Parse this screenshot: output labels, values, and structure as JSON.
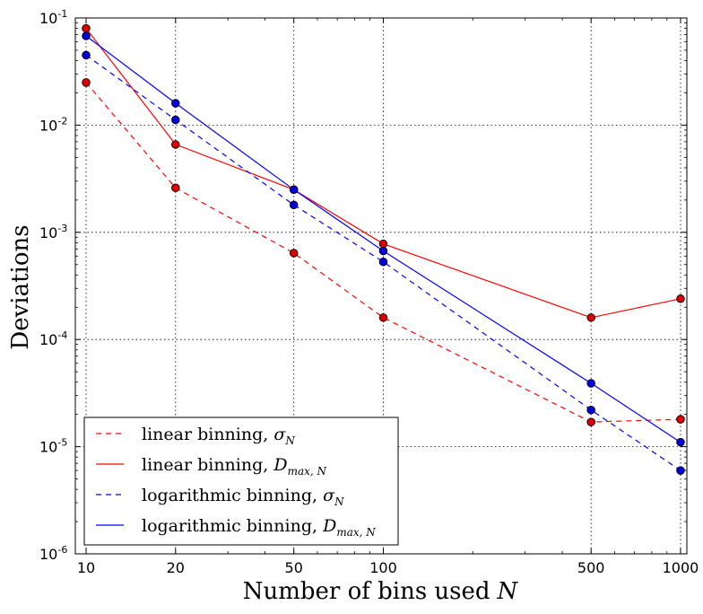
{
  "chart_data": {
    "type": "line",
    "xscale": "log",
    "yscale": "log",
    "xlim": [
      9.2,
      1050
    ],
    "ylim": [
      1e-06,
      0.1
    ],
    "grid": true,
    "legend_position": "bottom-left",
    "xlabel": "Number of bins used",
    "xlabel_math": "N",
    "ylabel": "Deviations",
    "x_ticks": [
      10,
      20,
      50,
      100,
      500,
      1000
    ],
    "x_tick_labels": [
      "10",
      "20",
      "50",
      "100",
      "500",
      "1000"
    ],
    "y_ticks": [
      1e-06,
      1e-05,
      0.0001,
      0.001,
      0.01,
      0.1
    ],
    "y_tick_labels": [
      {
        "base": "10",
        "exp": "-6"
      },
      {
        "base": "10",
        "exp": "-5"
      },
      {
        "base": "10",
        "exp": "-4"
      },
      {
        "base": "10",
        "exp": "-3"
      },
      {
        "base": "10",
        "exp": "-2"
      },
      {
        "base": "10",
        "exp": "-1"
      }
    ],
    "x": [
      10,
      20,
      50,
      100,
      500,
      1000
    ],
    "series": [
      {
        "name": "linear binning, ",
        "math": "σ",
        "sub": "N",
        "color": "#ff0000",
        "marker_fill": "#dd0000",
        "dash": true,
        "values": [
          0.025,
          0.0026,
          0.00064,
          0.00016,
          1.7e-05,
          1.8e-05
        ]
      },
      {
        "name": "linear binning, ",
        "math": "D",
        "sub": "max, N",
        "color": "#ff0000",
        "marker_fill": "#dd0000",
        "dash": false,
        "values": [
          0.08,
          0.0066,
          0.0025,
          0.00078,
          0.00016,
          0.00024
        ]
      },
      {
        "name": "logarithmic binning, ",
        "math": "σ",
        "sub": "N",
        "color": "#0000ff",
        "marker_fill": "#0000dd",
        "dash": true,
        "values": [
          0.045,
          0.0112,
          0.0018,
          0.00053,
          2.2e-05,
          6e-06
        ]
      },
      {
        "name": "logarithmic binning, ",
        "math": "D",
        "sub": "max, N",
        "color": "#0000ff",
        "marker_fill": "#0000dd",
        "dash": false,
        "values": [
          0.068,
          0.016,
          0.0025,
          0.00067,
          3.9e-05,
          1.1e-05
        ]
      }
    ]
  }
}
